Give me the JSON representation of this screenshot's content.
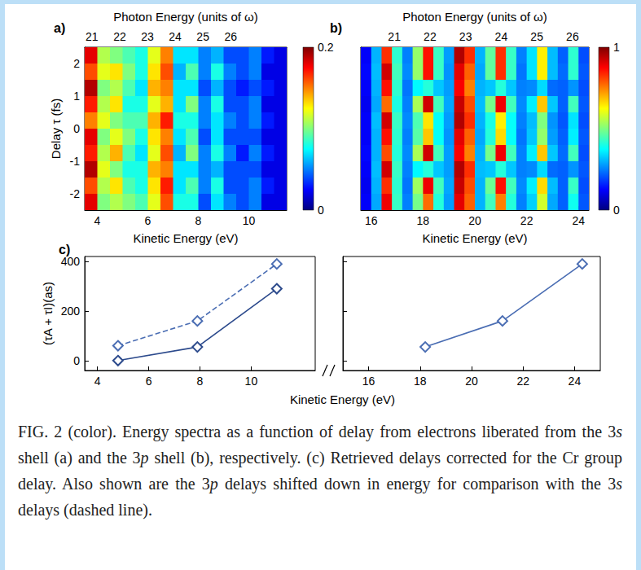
{
  "chart_data": [
    {
      "type": "heatmap",
      "panel": "a)",
      "x_label": "Kinetic Energy (eV)",
      "x2_label": "Photon Energy (units of ω)",
      "y_label": "Delay τ (fs)",
      "xlim": [
        3.5,
        11.5
      ],
      "xticks": [
        4,
        6,
        8,
        10
      ],
      "x2lim": [
        20.74,
        28.02
      ],
      "x2ticks": [
        21,
        22,
        23,
        24,
        25,
        26
      ],
      "ylim": [
        -2.5,
        2.5
      ],
      "yticks": [
        -2,
        -1,
        0,
        1,
        2
      ],
      "grid": false,
      "cells": {
        "x": [
          3.75,
          4.25,
          4.75,
          5.25,
          5.75,
          6.25,
          6.75,
          7.25,
          7.75,
          8.25,
          8.75,
          9.25,
          9.75,
          10.25,
          10.75,
          11.25
        ],
        "y": [
          2.25,
          1.75,
          1.25,
          0.75,
          0.25,
          -0.25,
          -0.75,
          -1.25,
          -1.75,
          -2.25
        ],
        "values": [
          [
            0.18,
            0.11,
            0.1,
            0.09,
            0.08,
            0.12,
            0.15,
            0.07,
            0.07,
            0.05,
            0.06,
            0.04,
            0.04,
            0.05,
            0.03,
            0.02
          ],
          [
            0.16,
            0.12,
            0.13,
            0.1,
            0.08,
            0.13,
            0.16,
            0.06,
            0.09,
            0.05,
            0.08,
            0.05,
            0.04,
            0.05,
            0.02,
            0.02
          ],
          [
            0.19,
            0.1,
            0.11,
            0.09,
            0.07,
            0.14,
            0.15,
            0.07,
            0.07,
            0.04,
            0.06,
            0.04,
            0.03,
            0.04,
            0.03,
            0.02
          ],
          [
            0.17,
            0.11,
            0.13,
            0.08,
            0.08,
            0.12,
            0.14,
            0.07,
            0.1,
            0.05,
            0.08,
            0.04,
            0.04,
            0.05,
            0.02,
            0.02
          ],
          [
            0.15,
            0.12,
            0.1,
            0.09,
            0.09,
            0.14,
            0.17,
            0.08,
            0.08,
            0.05,
            0.07,
            0.05,
            0.04,
            0.05,
            0.03,
            0.02
          ],
          [
            0.18,
            0.1,
            0.12,
            0.1,
            0.08,
            0.13,
            0.15,
            0.07,
            0.09,
            0.04,
            0.07,
            0.04,
            0.04,
            0.04,
            0.02,
            0.02
          ],
          [
            0.17,
            0.11,
            0.14,
            0.09,
            0.07,
            0.12,
            0.16,
            0.06,
            0.1,
            0.05,
            0.08,
            0.05,
            0.03,
            0.05,
            0.03,
            0.02
          ],
          [
            0.19,
            0.12,
            0.1,
            0.08,
            0.08,
            0.14,
            0.15,
            0.07,
            0.07,
            0.05,
            0.06,
            0.04,
            0.04,
            0.04,
            0.02,
            0.02
          ],
          [
            0.16,
            0.11,
            0.13,
            0.09,
            0.08,
            0.13,
            0.17,
            0.07,
            0.09,
            0.05,
            0.08,
            0.04,
            0.04,
            0.05,
            0.03,
            0.02
          ],
          [
            0.18,
            0.1,
            0.11,
            0.1,
            0.09,
            0.12,
            0.16,
            0.08,
            0.08,
            0.04,
            0.07,
            0.05,
            0.04,
            0.05,
            0.02,
            0.02
          ]
        ]
      },
      "colorbar": {
        "range": [
          0,
          0.2
        ],
        "ticks": [
          0,
          0.2
        ]
      }
    },
    {
      "type": "heatmap",
      "panel": "b)",
      "x_label": "Kinetic Energy (eV)",
      "x2_label": "Photon Energy (units of ω)",
      "xlim": [
        15.6,
        24.4
      ],
      "xticks": [
        16,
        18,
        20,
        22,
        24
      ],
      "x2lim": [
        20.06,
        26.46
      ],
      "x2ticks": [
        21,
        22,
        23,
        24,
        25,
        26
      ],
      "ylim": [
        -2.5,
        2.5
      ],
      "tick_labels": "x",
      "grid": false,
      "cells": {
        "x": [
          15.8,
          16.2,
          16.6,
          17.0,
          17.4,
          17.8,
          18.2,
          18.6,
          19.0,
          19.4,
          19.8,
          20.2,
          20.6,
          21.0,
          21.4,
          21.8,
          22.2,
          22.6,
          23.0,
          23.4,
          23.8,
          24.2
        ],
        "y": [
          2.25,
          1.75,
          1.25,
          0.75,
          0.25,
          -0.25,
          -0.75,
          -1.25,
          -1.75,
          -2.25
        ],
        "values": [
          [
            0.12,
            0.3,
            0.83,
            0.42,
            0.25,
            0.52,
            0.86,
            0.43,
            0.28,
            0.95,
            0.83,
            0.3,
            0.47,
            0.83,
            0.43,
            0.25,
            0.35,
            0.64,
            0.31,
            0.22,
            0.42,
            0.2
          ],
          [
            0.13,
            0.31,
            0.92,
            0.44,
            0.26,
            0.52,
            0.86,
            0.43,
            0.27,
            0.9,
            0.78,
            0.29,
            0.47,
            0.83,
            0.43,
            0.24,
            0.35,
            0.64,
            0.31,
            0.23,
            0.42,
            0.21
          ],
          [
            0.12,
            0.3,
            0.86,
            0.42,
            0.24,
            0.37,
            0.41,
            0.32,
            0.28,
            0.88,
            0.75,
            0.3,
            0.32,
            0.41,
            0.32,
            0.25,
            0.26,
            0.34,
            0.23,
            0.22,
            0.27,
            0.2
          ],
          [
            0.11,
            0.29,
            0.77,
            0.4,
            0.25,
            0.54,
            0.92,
            0.44,
            0.29,
            0.93,
            0.8,
            0.31,
            0.49,
            0.89,
            0.44,
            0.26,
            0.36,
            0.68,
            0.32,
            0.22,
            0.44,
            0.21
          ],
          [
            0.12,
            0.31,
            0.92,
            0.43,
            0.26,
            0.45,
            0.65,
            0.38,
            0.28,
            0.95,
            0.83,
            0.3,
            0.4,
            0.64,
            0.38,
            0.25,
            0.31,
            0.5,
            0.27,
            0.21,
            0.35,
            0.2
          ],
          [
            0.12,
            0.3,
            0.86,
            0.42,
            0.25,
            0.46,
            0.68,
            0.38,
            0.27,
            0.9,
            0.78,
            0.29,
            0.41,
            0.66,
            0.38,
            0.24,
            0.32,
            0.52,
            0.28,
            0.22,
            0.36,
            0.21
          ],
          [
            0.13,
            0.3,
            0.8,
            0.41,
            0.26,
            0.54,
            0.92,
            0.44,
            0.28,
            0.88,
            0.75,
            0.3,
            0.49,
            0.89,
            0.44,
            0.25,
            0.36,
            0.68,
            0.32,
            0.23,
            0.44,
            0.2
          ],
          [
            0.12,
            0.31,
            0.92,
            0.43,
            0.25,
            0.37,
            0.41,
            0.32,
            0.28,
            0.95,
            0.83,
            0.31,
            0.32,
            0.41,
            0.32,
            0.25,
            0.26,
            0.34,
            0.23,
            0.22,
            0.27,
            0.21
          ],
          [
            0.11,
            0.3,
            0.83,
            0.42,
            0.24,
            0.53,
            0.89,
            0.44,
            0.29,
            0.93,
            0.8,
            0.3,
            0.48,
            0.86,
            0.44,
            0.26,
            0.36,
            0.66,
            0.31,
            0.22,
            0.43,
            0.2
          ],
          [
            0.12,
            0.29,
            0.89,
            0.43,
            0.25,
            0.49,
            0.77,
            0.41,
            0.28,
            0.9,
            0.78,
            0.3,
            0.44,
            0.75,
            0.41,
            0.25,
            0.33,
            0.58,
            0.29,
            0.22,
            0.39,
            0.21
          ]
        ]
      },
      "colorbar": {
        "range": [
          0,
          1
        ],
        "ticks": [
          0,
          1
        ]
      }
    },
    {
      "type": "line",
      "panel": "c)",
      "x_label": "Kinetic Energy (eV)",
      "y_label": "(τA + τI)(as)",
      "xlim": [
        3.5,
        25
      ],
      "x_break": [
        12.5,
        15
      ],
      "xticks": [
        4,
        6,
        8,
        10,
        16,
        18,
        20,
        22,
        24
      ],
      "ylim": [
        -40,
        420
      ],
      "yticks": [
        0,
        200,
        400
      ],
      "grid": false,
      "series": [
        {
          "x": [
            4.8,
            7.9,
            11.0
          ],
          "values": [
            0,
            55,
            290
          ],
          "color": "#2c4a8c",
          "line_style": "solid",
          "marker": "diamond"
        },
        {
          "x": [
            4.8,
            7.9,
            11.0
          ],
          "values": [
            60,
            160,
            390
          ],
          "color": "#4a6db3",
          "line_style": "dashed",
          "marker": "diamond"
        },
        {
          "x": [
            18.2,
            21.2,
            24.3
          ],
          "values": [
            55,
            160,
            390
          ],
          "color": "#4a6db3",
          "line_style": "solid",
          "marker": "diamond"
        }
      ]
    }
  ],
  "caption": "FIG. 2 (color). Energy spectra as a function of delay from electrons liberated from the 3s shell (a) and the 3p shell (b), respectively. (c) Retrieved delays corrected for the Cr group delay. Also shown are the 3p delays shifted down in energy for comparison with the 3s delays (dashed line)."
}
